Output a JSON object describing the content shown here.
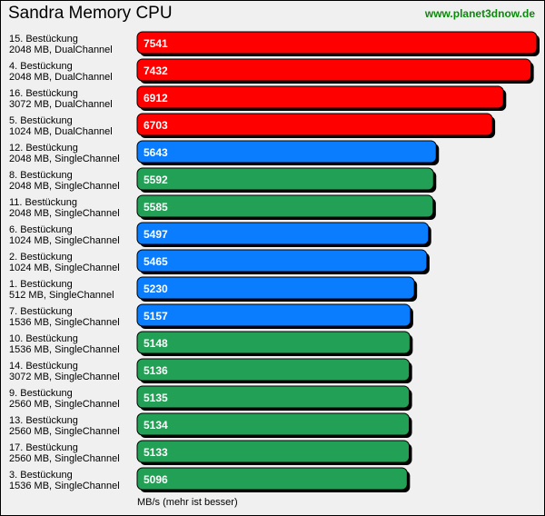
{
  "chart_data": {
    "type": "bar",
    "orientation": "horizontal",
    "title": "Sandra Memory CPU",
    "source": "www.planet3dnow.de",
    "xlabel": "MB/s (mehr ist besser)",
    "xlim": [
      0,
      7541
    ],
    "colors": {
      "dual": "#ff0000",
      "single_blue": "#0a7dff",
      "single_green": "#22a055"
    },
    "bars": [
      {
        "line1": "15. Bestückung",
        "line2": "2048 MB, DualChannel",
        "value": 7541,
        "color": "#ff0000"
      },
      {
        "line1": "4. Bestückung",
        "line2": "2048 MB, DualChannel",
        "value": 7432,
        "color": "#ff0000"
      },
      {
        "line1": "16. Bestückung",
        "line2": "3072 MB, DualChannel",
        "value": 6912,
        "color": "#ff0000"
      },
      {
        "line1": "5. Bestückung",
        "line2": "1024 MB, DualChannel",
        "value": 6703,
        "color": "#ff0000"
      },
      {
        "line1": "12. Bestückung",
        "line2": "2048 MB, SingleChannel",
        "value": 5643,
        "color": "#0a7dff"
      },
      {
        "line1": "8. Bestückung",
        "line2": "2048 MB, SingleChannel",
        "value": 5592,
        "color": "#22a055"
      },
      {
        "line1": "11. Bestückung",
        "line2": "2048 MB, SingleChannel",
        "value": 5585,
        "color": "#22a055"
      },
      {
        "line1": "6. Bestückung",
        "line2": "1024 MB, SingleChannel",
        "value": 5497,
        "color": "#0a7dff"
      },
      {
        "line1": "2. Bestückung",
        "line2": "1024 MB, SingleChannel",
        "value": 5465,
        "color": "#0a7dff"
      },
      {
        "line1": "1. Bestückung",
        "line2": "512 MB,  SingleChannel",
        "value": 5230,
        "color": "#0a7dff"
      },
      {
        "line1": "7. Bestückung",
        "line2": "1536 MB, SingleChannel",
        "value": 5157,
        "color": "#0a7dff"
      },
      {
        "line1": "10. Bestückung",
        "line2": "1536 MB, SingleChannel",
        "value": 5148,
        "color": "#22a055"
      },
      {
        "line1": "14. Bestückung",
        "line2": "3072 MB, SingleChannel",
        "value": 5136,
        "color": "#22a055"
      },
      {
        "line1": "9. Bestückung",
        "line2": "2560 MB, SingleChannel",
        "value": 5135,
        "color": "#22a055"
      },
      {
        "line1": "13. Bestückung",
        "line2": "2560 MB, SingleChannel",
        "value": 5134,
        "color": "#22a055"
      },
      {
        "line1": "17. Bestückung",
        "line2": "2560 MB, SingleChannel",
        "value": 5133,
        "color": "#22a055"
      },
      {
        "line1": "3. Bestückung",
        "line2": "1536 MB, SingleChannel",
        "value": 5096,
        "color": "#22a055"
      }
    ]
  }
}
